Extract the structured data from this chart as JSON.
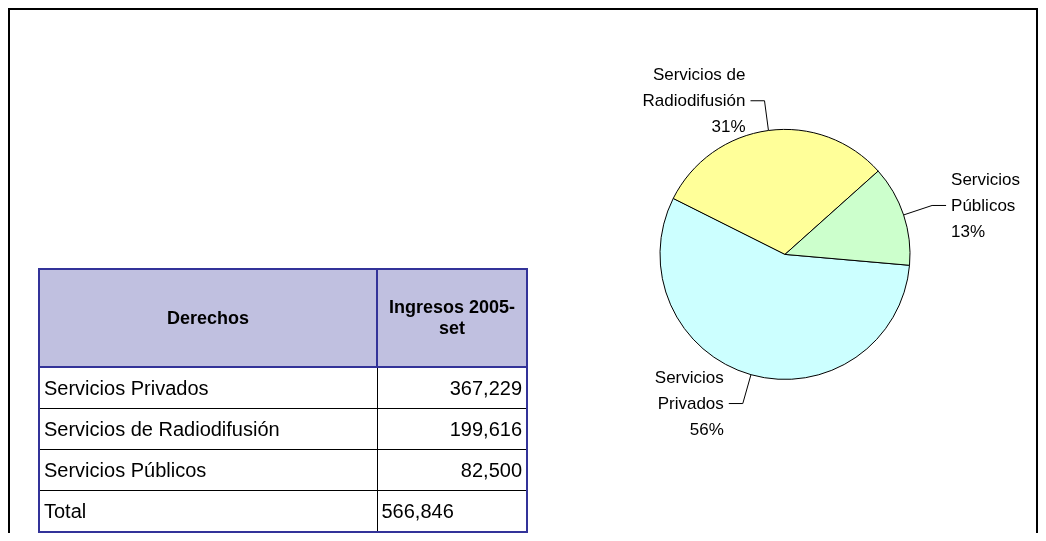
{
  "chart_data": {
    "type": "pie",
    "xlabel": "Derechos",
    "ylabel": "Ingresos 2005-set",
    "categories": [
      "Servicios Privados",
      "Servicios de Radiodifusión",
      "Servicios Públicos"
    ],
    "values": [
      56,
      31,
      13
    ],
    "value_labels": [
      "56%",
      "31%",
      "13%"
    ],
    "colors": [
      "#ccffff",
      "#ffff99",
      "#ccffcc"
    ],
    "annotations": [
      "Servicios Privados",
      "367,229",
      "Servicios de Radiodifusión",
      "199,616",
      "Servicios Públicos",
      "82,500",
      "Total",
      "566,846"
    ]
  }
}
